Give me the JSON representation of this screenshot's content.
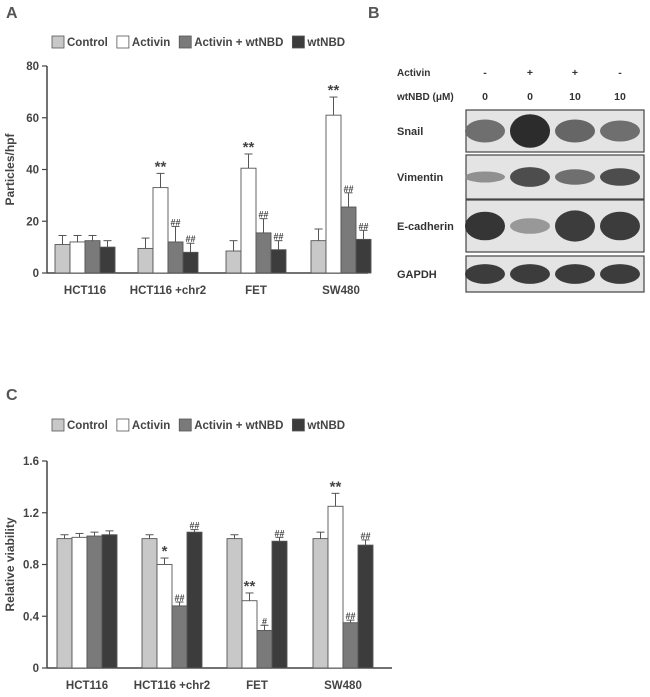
{
  "panels": {
    "a_label": "A",
    "b_label": "B",
    "c_label": "C"
  },
  "colors": {
    "control": "#c8c8c8",
    "activin": "#ffffff",
    "activin_wtnbd": "#7a7a7a",
    "wtnbd": "#3c3c3c",
    "axis": "#444444"
  },
  "chart_data": [
    {
      "type": "bar",
      "panel": "A",
      "title": "",
      "xlabel": "",
      "ylabel": "Particles/hpf",
      "ylim": [
        0,
        80
      ],
      "yticks": [
        "0",
        "20",
        "40",
        "60",
        "80"
      ],
      "categories": [
        "HCT116",
        "HCT116 +chr2",
        "FET",
        "SW480"
      ],
      "series": [
        {
          "name": "Control",
          "values": [
            11,
            9.5,
            8.5,
            12.5
          ],
          "errors": [
            3.5,
            4,
            4,
            4.5
          ],
          "annotations": [
            "",
            "",
            "",
            ""
          ]
        },
        {
          "name": "Activin",
          "values": [
            12,
            33,
            40.5,
            61
          ],
          "errors": [
            2.5,
            5.5,
            5.5,
            7
          ],
          "annotations": [
            "",
            "**",
            "**",
            "**"
          ]
        },
        {
          "name": "Activin + wtNBD",
          "values": [
            12.5,
            12,
            15.5,
            25.5
          ],
          "errors": [
            2,
            6,
            5.5,
            5.5
          ],
          "annotations": [
            "",
            "##",
            "##",
            "##"
          ]
        },
        {
          "name": "wtNBD",
          "values": [
            10,
            8,
            9,
            13
          ],
          "errors": [
            2.5,
            3.5,
            3.5,
            3.5
          ],
          "annotations": [
            "",
            "##",
            "##",
            "##"
          ]
        }
      ],
      "legend": "top"
    },
    {
      "type": "bar",
      "panel": "C",
      "title": "",
      "xlabel": "",
      "ylabel": "Relative viability",
      "ylim": [
        0,
        1.6
      ],
      "yticks": [
        "0",
        "0.4",
        "0.8",
        "1.2",
        "1.6"
      ],
      "categories": [
        "HCT116",
        "HCT116 +chr2",
        "FET",
        "SW480"
      ],
      "series": [
        {
          "name": "Control",
          "values": [
            1.0,
            1.0,
            1.0,
            1.0
          ],
          "errors": [
            0.03,
            0.03,
            0.03,
            0.05
          ],
          "annotations": [
            "",
            "",
            "",
            ""
          ]
        },
        {
          "name": "Activin",
          "values": [
            1.01,
            0.8,
            0.52,
            1.25
          ],
          "errors": [
            0.03,
            0.05,
            0.06,
            0.1
          ],
          "annotations": [
            "",
            "*",
            "**",
            "**"
          ]
        },
        {
          "name": "Activin + wtNBD",
          "values": [
            1.02,
            0.48,
            0.29,
            0.35
          ],
          "errors": [
            0.03,
            0.03,
            0.04,
            0.02
          ],
          "annotations": [
            "",
            "##",
            "#",
            "##"
          ]
        },
        {
          "name": "wtNBD",
          "values": [
            1.03,
            1.05,
            0.98,
            0.95
          ],
          "errors": [
            0.03,
            0.02,
            0.03,
            0.04
          ],
          "annotations": [
            "",
            "##",
            "##",
            "##"
          ]
        }
      ],
      "legend": "top"
    }
  ],
  "blot": {
    "header_rows": [
      {
        "label": "Activin",
        "values": [
          "-",
          "+",
          "+",
          "-"
        ]
      },
      {
        "label": "wtNBD (μM)",
        "values": [
          "0",
          "0",
          "10",
          "10"
        ]
      }
    ],
    "rows": [
      {
        "label": "Snail",
        "intensity": [
          0.55,
          0.95,
          0.6,
          0.55
        ],
        "thickness": [
          0.55,
          0.8,
          0.55,
          0.5
        ]
      },
      {
        "label": "Vimentin",
        "intensity": [
          0.35,
          0.75,
          0.55,
          0.75
        ],
        "thickness": [
          0.25,
          0.45,
          0.35,
          0.4
        ]
      },
      {
        "label": "E-cadherin",
        "intensity": [
          0.9,
          0.3,
          0.85,
          0.85
        ],
        "thickness": [
          0.55,
          0.3,
          0.6,
          0.55
        ]
      },
      {
        "label": "GAPDH",
        "intensity": [
          0.85,
          0.85,
          0.85,
          0.85
        ],
        "thickness": [
          0.55,
          0.55,
          0.55,
          0.55
        ]
      }
    ]
  }
}
